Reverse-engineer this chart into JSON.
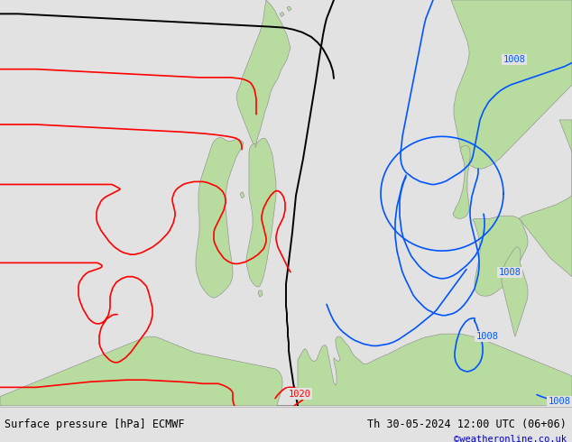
{
  "title_left": "Surface pressure [hPa] ECMWF",
  "title_right": "Th 30-05-2024 12:00 UTC (06+06)",
  "credit": "©weatheronline.co.uk",
  "bg_color": "#e2e2e2",
  "land_color": "#b8dca0",
  "border_color": "#888888",
  "sea_color": "#d5d5d5",
  "fig_width": 6.34,
  "fig_height": 4.9,
  "dpi": 100,
  "red_color": "#ff0000",
  "blue_color": "#0055ff",
  "black_color": "#000000"
}
